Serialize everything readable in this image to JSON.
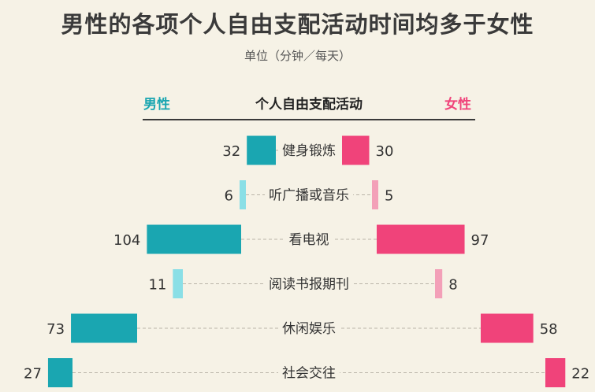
{
  "title": "男性的各项个人自由支配活动时间均多于女性",
  "unit_label": "单位（分钟／每天）",
  "legend": {
    "male": "男性",
    "center": "个人自由支配活动",
    "female": "女性"
  },
  "colors": {
    "male_strong": "#1aa6b1",
    "male_light": "#8adfe6",
    "female_strong": "#f0437a",
    "female_light": "#f3a0b8",
    "background": "#f6f2e6"
  },
  "chart_data": {
    "type": "bar",
    "orientation": "horizontal-diverging",
    "title": "男性的各项个人自由支配活动时间均多于女性",
    "subtitle": "单位（分钟／每天）",
    "categories": [
      "健身锻炼",
      "听广播或音乐",
      "看电视",
      "阅读书报期刊",
      "休闲娱乐",
      "社会交往"
    ],
    "series": [
      {
        "name": "男性",
        "values": [
          32,
          6,
          104,
          11,
          73,
          27
        ]
      },
      {
        "name": "女性",
        "values": [
          30,
          5,
          97,
          8,
          58,
          22
        ]
      }
    ]
  }
}
